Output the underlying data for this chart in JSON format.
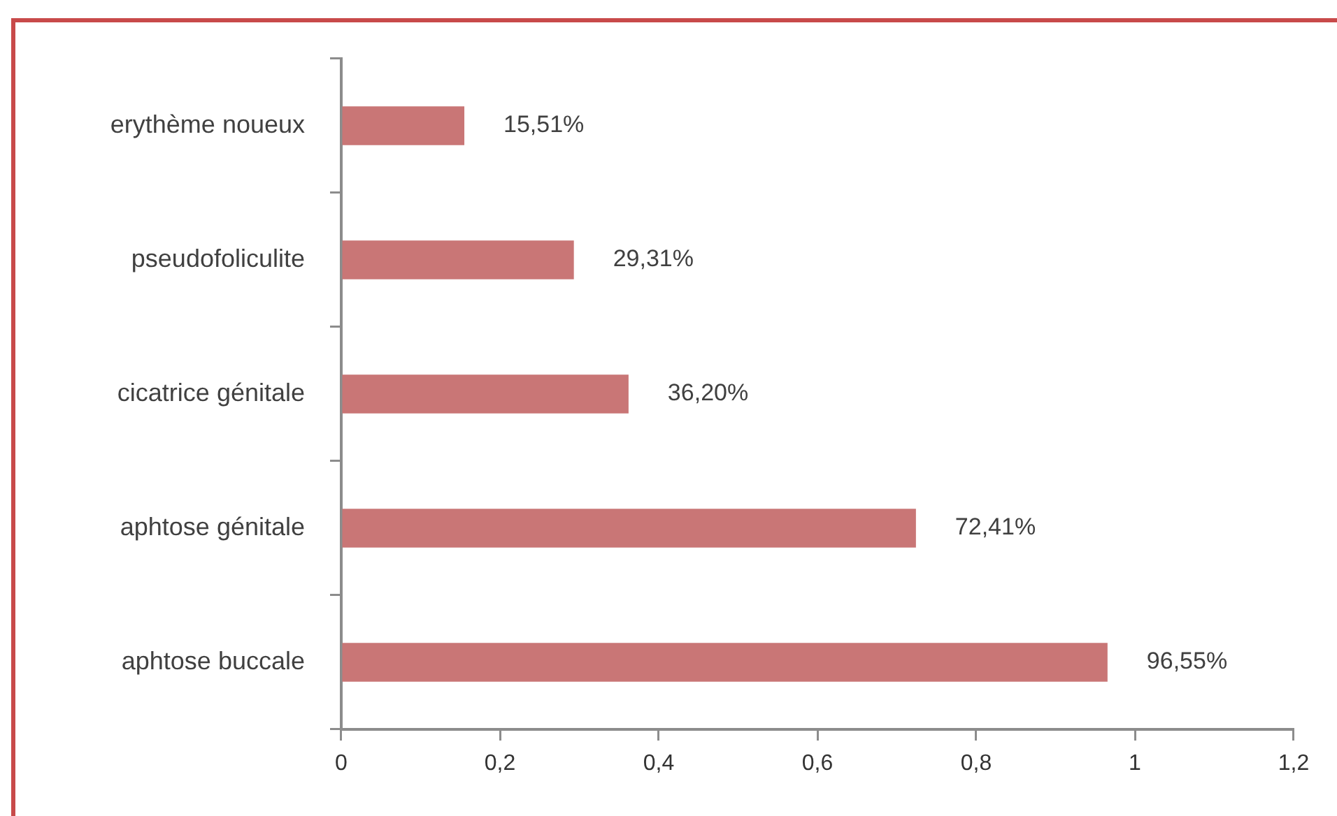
{
  "chart_data": {
    "type": "bar",
    "orientation": "horizontal",
    "categories": [
      "erythème noueux",
      "pseudofoliculite",
      "cicatrice génitale",
      "aphtose génitale",
      "aphtose buccale"
    ],
    "values": [
      0.1551,
      0.2931,
      0.362,
      0.7241,
      0.9655
    ],
    "value_labels": [
      "15,51%",
      "29,31%",
      "36,20%",
      "72,41%",
      "96,55%"
    ],
    "color": "#c97676",
    "xlim": [
      0,
      1.2
    ],
    "xticks": [
      0,
      {
        "value": 0.2,
        "label": "0,2"
      },
      {
        "value": 0.4,
        "label": "0,4"
      },
      {
        "value": 0.6,
        "label": "0,6"
      },
      {
        "value": 0.8,
        "label": "0,8"
      },
      1,
      {
        "value": 1.2,
        "label": "1,2"
      }
    ],
    "grid": false
  }
}
